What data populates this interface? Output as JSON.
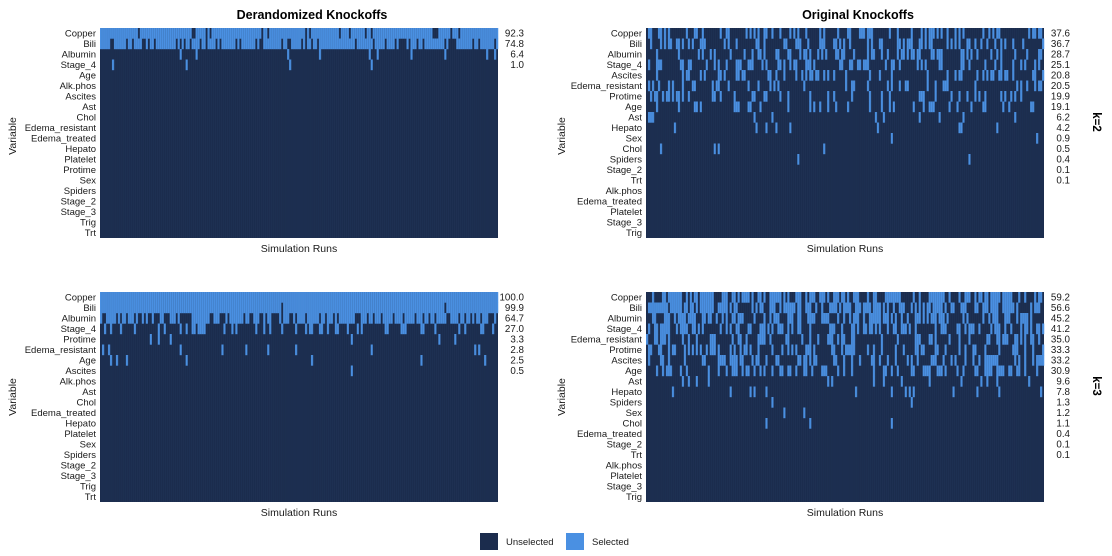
{
  "colors": {
    "unselected": "#1b2c4d",
    "selected": "#4a90e2",
    "separator": "#2f4a72"
  },
  "legend": {
    "unselected": "Unselected",
    "selected": "Selected"
  },
  "x_axis_label": "Simulation Runs",
  "y_axis_label": "Variable",
  "column_titles": [
    "Derandomized Knockoffs",
    "Original Knockoffs"
  ],
  "row_strips": [
    "k=2",
    "k=3"
  ],
  "chart_data": [
    {
      "type": "heatmap",
      "title": "Derandomized Knockoffs",
      "strip": "k=2",
      "xlabel": "Simulation Runs",
      "ylabel": "Variable",
      "variables": [
        "Copper",
        "Bili",
        "Albumin",
        "Stage_4",
        "Age",
        "Alk.phos",
        "Ascites",
        "Ast",
        "Chol",
        "Edema_resistant",
        "Edema_treated",
        "Hepato",
        "Platelet",
        "Protime",
        "Sex",
        "Spiders",
        "Stage_2",
        "Stage_3",
        "Trig",
        "Trt"
      ],
      "selection_pct": [
        "92.3",
        "74.8",
        "6.4",
        "1.0",
        "",
        "",
        "",
        "",
        "",
        "",
        "",
        "",
        "",
        "",
        "",
        "",
        "",
        "",
        "",
        ""
      ]
    },
    {
      "type": "heatmap",
      "title": "Original Knockoffs",
      "strip": "k=2",
      "xlabel": "Simulation Runs",
      "ylabel": "Variable",
      "variables": [
        "Copper",
        "Bili",
        "Albumin",
        "Stage_4",
        "Ascites",
        "Edema_resistant",
        "Protime",
        "Age",
        "Ast",
        "Hepato",
        "Sex",
        "Chol",
        "Spiders",
        "Stage_2",
        "Trt",
        "Alk.phos",
        "Edema_treated",
        "Platelet",
        "Stage_3",
        "Trig"
      ],
      "selection_pct": [
        "37.6",
        "36.7",
        "28.7",
        "25.1",
        "20.8",
        "20.5",
        "19.9",
        "19.1",
        "6.2",
        "4.2",
        "0.9",
        "0.5",
        "0.4",
        "0.1",
        "0.1",
        "",
        "",
        "",
        "",
        ""
      ]
    },
    {
      "type": "heatmap",
      "title": "Derandomized Knockoffs",
      "strip": "k=3",
      "xlabel": "Simulation Runs",
      "ylabel": "Variable",
      "variables": [
        "Copper",
        "Bili",
        "Albumin",
        "Stage_4",
        "Protime",
        "Edema_resistant",
        "Age",
        "Ascites",
        "Alk.phos",
        "Ast",
        "Chol",
        "Edema_treated",
        "Hepato",
        "Platelet",
        "Sex",
        "Spiders",
        "Stage_2",
        "Stage_3",
        "Trig",
        "Trt"
      ],
      "selection_pct": [
        "100.0",
        "99.9",
        "64.7",
        "27.0",
        "3.3",
        "2.8",
        "2.5",
        "0.5",
        "",
        "",
        "",
        "",
        "",
        "",
        "",
        "",
        "",
        "",
        "",
        ""
      ]
    },
    {
      "type": "heatmap",
      "title": "Original Knockoffs",
      "strip": "k=3",
      "xlabel": "Simulation Runs",
      "ylabel": "Variable",
      "variables": [
        "Copper",
        "Bili",
        "Albumin",
        "Stage_4",
        "Edema_resistant",
        "Protime",
        "Ascites",
        "Age",
        "Ast",
        "Hepato",
        "Spiders",
        "Sex",
        "Chol",
        "Edema_treated",
        "Stage_2",
        "Trt",
        "Alk.phos",
        "Platelet",
        "Stage_3",
        "Trig"
      ],
      "selection_pct": [
        "59.2",
        "56.6",
        "45.2",
        "41.2",
        "35.0",
        "33.3",
        "33.2",
        "30.9",
        "9.6",
        "7.8",
        "1.3",
        "1.2",
        "1.1",
        "0.4",
        "0.1",
        "0.1",
        "",
        "",
        "",
        ""
      ]
    }
  ]
}
